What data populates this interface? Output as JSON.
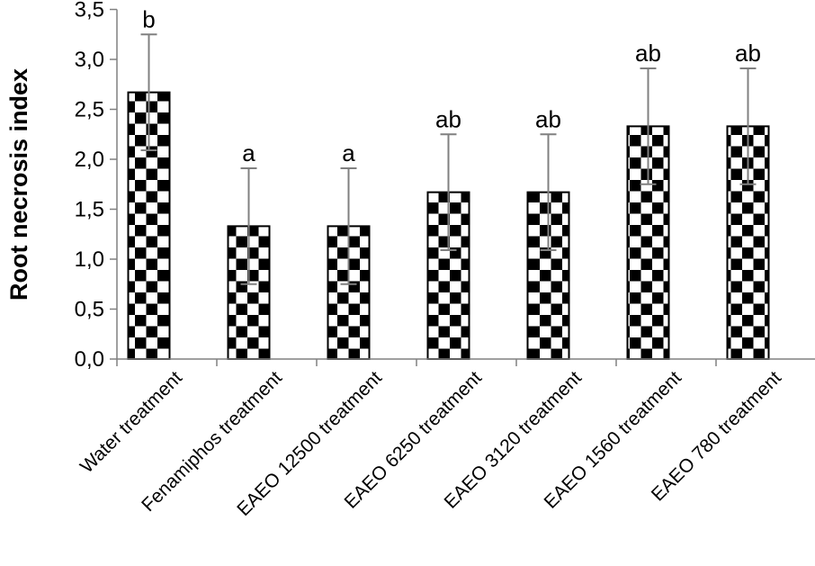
{
  "chart_data": {
    "type": "bar",
    "title": "",
    "xlabel": "",
    "ylabel": "Root necrosis index",
    "ylim": [
      0,
      3.5
    ],
    "yticks": [
      "0,0",
      "0,5",
      "1,0",
      "1,5",
      "2,0",
      "2,5",
      "3,0",
      "3,5"
    ],
    "ytick_values": [
      0,
      0.5,
      1.0,
      1.5,
      2.0,
      2.5,
      3.0,
      3.5
    ],
    "grid": false,
    "legend": null,
    "bar_pattern": "checkerboard",
    "categories": [
      "Water treatment",
      "Fenamiphos treatment",
      "EAEO 12500 treatment",
      "EAEO 6250 treatment",
      "EAEO 3120 treatment",
      "EAEO 1560 treatment",
      "EAEO 780 treatment"
    ],
    "values": [
      2.67,
      1.33,
      1.33,
      1.67,
      1.67,
      2.33,
      2.33
    ],
    "error": [
      0.58,
      0.58,
      0.58,
      0.58,
      0.58,
      0.58,
      0.58
    ],
    "annotations": [
      "b",
      "a",
      "a",
      "ab",
      "ab",
      "ab",
      "ab"
    ]
  },
  "colors": {
    "axis": "#808080",
    "error_bar": "#808080",
    "bar_border": "#000000",
    "checker_dark": "#000000",
    "checker_light": "#ffffff"
  }
}
